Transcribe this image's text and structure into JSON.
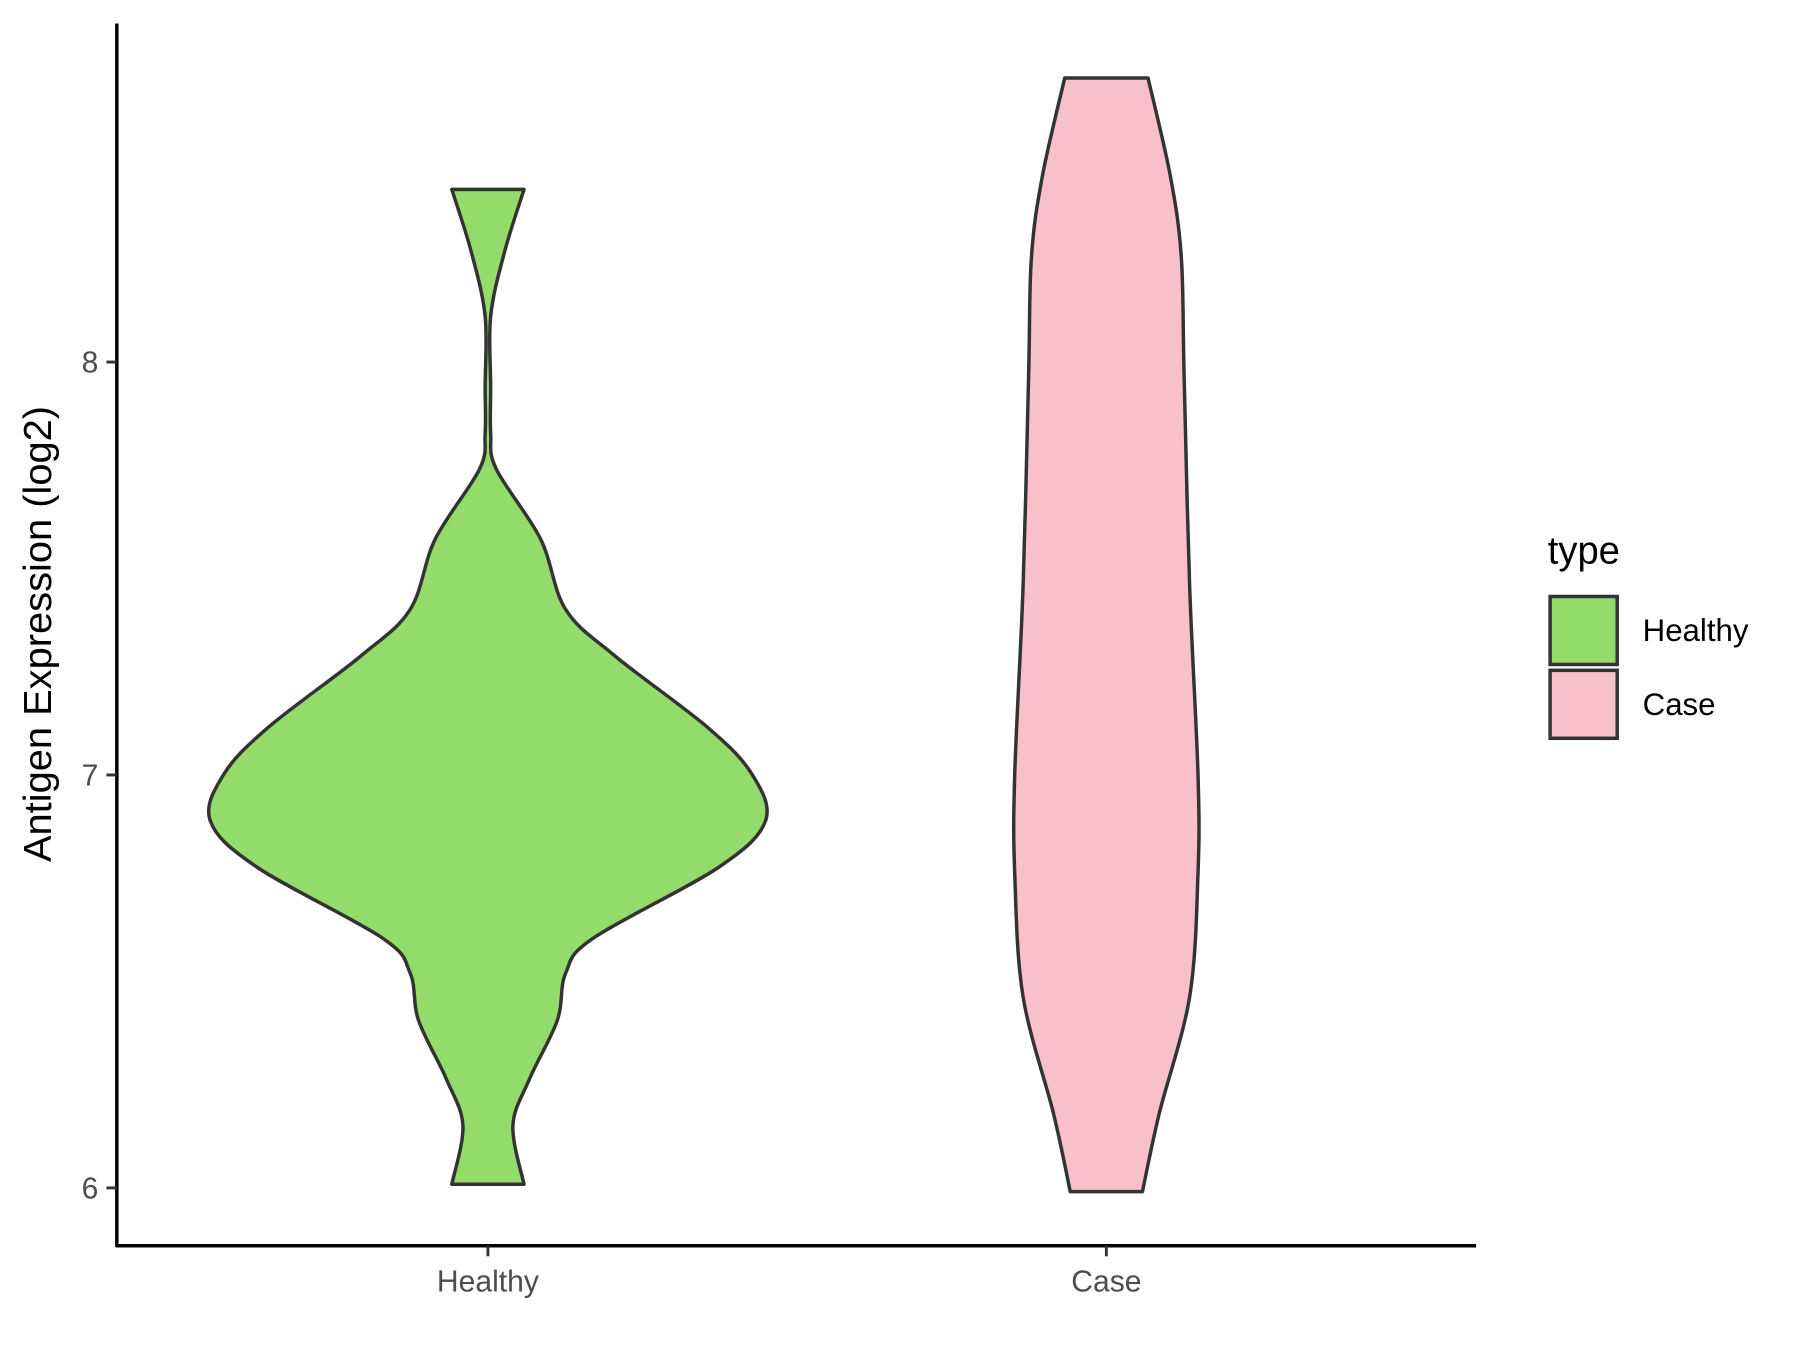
{
  "chart_data": {
    "type": "violin",
    "y_label": "Antigen Expression (log2)",
    "categories": [
      "Healthy",
      "Case"
    ],
    "ylim": [
      5.86,
      8.82
    ],
    "yticks": [
      6,
      7,
      8
    ],
    "legend_title": "type",
    "legend_position": "right",
    "series": [
      {
        "name": "Healthy",
        "color": "#93dc6b",
        "y": [
          8.418,
          8.267,
          8.111,
          7.94,
          7.827,
          7.741,
          7.571,
          7.401,
          7.287,
          7.116,
          7.003,
          6.889,
          6.776,
          6.605,
          6.52,
          6.406,
          6.264,
          6.151,
          6.009
        ],
        "width": [
          0.13,
          0.06,
          0.01,
          0.01,
          0.01,
          0.03,
          0.19,
          0.28,
          0.46,
          0.79,
          0.95,
          1,
          0.83,
          0.38,
          0.28,
          0.25,
          0.15,
          0.09,
          0.13
        ]
      },
      {
        "name": "Case",
        "color": "#f7c0cb",
        "y": [
          8.688,
          8.452,
          8.253,
          7.969,
          7.457,
          7.003,
          6.761,
          6.463,
          6.179,
          5.991
        ],
        "width": [
          0.15,
          0.23,
          0.27,
          0.28,
          0.3,
          0.33,
          0.33,
          0.3,
          0.19,
          0.13
        ]
      }
    ]
  }
}
